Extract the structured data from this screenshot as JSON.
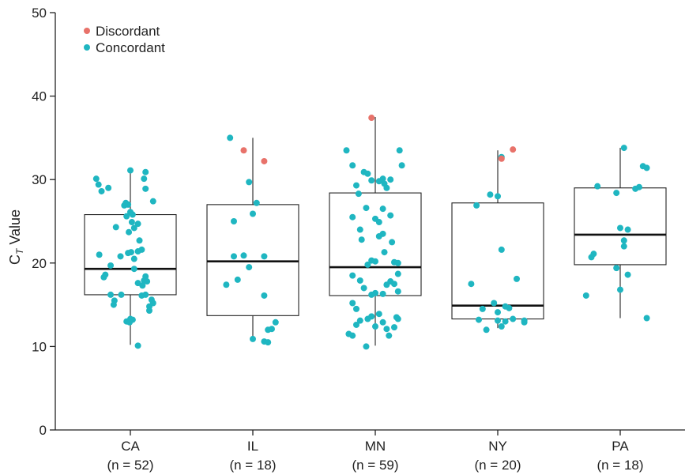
{
  "chart_data": {
    "type": "box-strip",
    "ylabel": "C",
    "ylabel_sub": "T",
    "ylabel_suffix": " Value",
    "ylim": [
      0,
      50
    ],
    "yticks": [
      0,
      10,
      20,
      30,
      40,
      50
    ],
    "grid": false,
    "legend_position": "top-left",
    "legend": [
      {
        "name": "Discordant",
        "color": "#e8726a"
      },
      {
        "name": "Concordant",
        "color": "#1fb6c1"
      }
    ],
    "categories": [
      {
        "name": "CA",
        "n_label": "(n = 52)",
        "box": {
          "q1": 16.2,
          "median": 19.3,
          "q3": 25.8,
          "whisker_low": 10.2,
          "whisker_high": 31.0
        },
        "points": [
          [
            -0.45,
            30.1
          ],
          [
            -0.42,
            29.4
          ],
          [
            -0.38,
            28.6
          ],
          [
            -0.29,
            29.0
          ],
          [
            -0.41,
            21.0
          ],
          [
            -0.35,
            18.3
          ],
          [
            -0.33,
            18.6
          ],
          [
            -0.26,
            19.7
          ],
          [
            -0.21,
            15.5
          ],
          [
            -0.22,
            15.0
          ],
          [
            -0.26,
            16.2
          ],
          [
            -0.12,
            16.2
          ],
          [
            -0.19,
            24.3
          ],
          [
            -0.08,
            26.9
          ],
          [
            -0.06,
            27.2
          ],
          [
            -0.03,
            27.0
          ],
          [
            0.0,
            26.1
          ],
          [
            0.03,
            25.8
          ],
          [
            -0.05,
            25.6
          ],
          [
            0.02,
            24.9
          ],
          [
            0.05,
            24.2
          ],
          [
            0.1,
            24.7
          ],
          [
            -0.02,
            23.7
          ],
          [
            0.0,
            31.1
          ],
          [
            -0.13,
            20.8
          ],
          [
            -0.03,
            21.2
          ],
          [
            0.01,
            21.3
          ],
          [
            0.1,
            21.4
          ],
          [
            0.15,
            21.6
          ],
          [
            0.12,
            22.7
          ],
          [
            0.05,
            20.5
          ],
          [
            0.03,
            13.2
          ],
          [
            -0.05,
            13.0
          ],
          [
            0.0,
            13.3
          ],
          [
            -0.01,
            12.9
          ],
          [
            0.05,
            19.3
          ],
          [
            0.1,
            17.6
          ],
          [
            0.16,
            17.3
          ],
          [
            0.18,
            17.9
          ],
          [
            0.2,
            18.4
          ],
          [
            0.22,
            17.8
          ],
          [
            0.2,
            16.2
          ],
          [
            0.15,
            16.1
          ],
          [
            0.28,
            15.6
          ],
          [
            0.25,
            14.8
          ],
          [
            0.25,
            14.3
          ],
          [
            0.3,
            15.2
          ],
          [
            0.3,
            27.4
          ],
          [
            0.2,
            30.9
          ],
          [
            0.18,
            30.1
          ],
          [
            0.2,
            28.9
          ],
          [
            0.1,
            10.1
          ]
        ],
        "discordant": []
      },
      {
        "name": "IL",
        "n_label": "(n = 18)",
        "box": {
          "q1": 13.7,
          "median": 20.2,
          "q3": 27.0,
          "whisker_low": 10.6,
          "whisker_high": 35.0
        },
        "points": [
          [
            -0.3,
            35.0
          ],
          [
            -0.25,
            25.0
          ],
          [
            -0.05,
            29.7
          ],
          [
            0.05,
            27.2
          ],
          [
            0.0,
            25.9
          ],
          [
            -0.35,
            17.4
          ],
          [
            -0.2,
            18.0
          ],
          [
            -0.05,
            19.5
          ],
          [
            -0.25,
            20.8
          ],
          [
            0.15,
            20.8
          ],
          [
            0.15,
            16.1
          ],
          [
            0.2,
            12.0
          ],
          [
            0.25,
            12.1
          ],
          [
            0.3,
            12.9
          ],
          [
            0.0,
            10.9
          ],
          [
            0.15,
            10.6
          ],
          [
            -0.12,
            20.9
          ],
          [
            0.2,
            10.5
          ]
        ],
        "discordant": [
          [
            -0.12,
            33.5
          ],
          [
            0.15,
            32.2
          ]
        ]
      },
      {
        "name": "MN",
        "n_label": "(n = 59)",
        "box": {
          "q1": 16.1,
          "median": 19.5,
          "q3": 28.4,
          "whisker_low": 10.1,
          "whisker_high": 37.5
        },
        "points": [
          [
            -0.38,
            33.5
          ],
          [
            -0.3,
            31.7
          ],
          [
            -0.25,
            29.3
          ],
          [
            -0.22,
            28.3
          ],
          [
            -0.15,
            30.9
          ],
          [
            -0.1,
            30.7
          ],
          [
            -0.05,
            29.9
          ],
          [
            0.05,
            29.8
          ],
          [
            0.1,
            30.1
          ],
          [
            0.12,
            29.5
          ],
          [
            0.15,
            29.0
          ],
          [
            0.2,
            30.0
          ],
          [
            -0.12,
            26.6
          ],
          [
            -0.3,
            25.5
          ],
          [
            -0.2,
            24.0
          ],
          [
            -0.18,
            22.8
          ],
          [
            0.0,
            25.3
          ],
          [
            0.05,
            24.9
          ],
          [
            0.1,
            26.5
          ],
          [
            0.2,
            25.7
          ],
          [
            0.22,
            22.5
          ],
          [
            0.1,
            23.5
          ],
          [
            0.05,
            23.2
          ],
          [
            -0.05,
            20.3
          ],
          [
            -0.1,
            19.8
          ],
          [
            0.0,
            20.2
          ],
          [
            0.12,
            21.3
          ],
          [
            0.25,
            20.1
          ],
          [
            0.3,
            18.7
          ],
          [
            -0.3,
            18.5
          ],
          [
            -0.2,
            17.9
          ],
          [
            -0.15,
            17.0
          ],
          [
            -0.05,
            16.2
          ],
          [
            0.0,
            16.4
          ],
          [
            0.1,
            16.3
          ],
          [
            0.15,
            17.4
          ],
          [
            0.2,
            17.8
          ],
          [
            0.25,
            17.5
          ],
          [
            0.3,
            16.6
          ],
          [
            -0.3,
            15.2
          ],
          [
            -0.25,
            14.5
          ],
          [
            -0.2,
            13.1
          ],
          [
            -0.1,
            13.3
          ],
          [
            -0.05,
            13.6
          ],
          [
            0.05,
            13.9
          ],
          [
            0.1,
            12.9
          ],
          [
            0.15,
            12.1
          ],
          [
            0.25,
            12.3
          ],
          [
            0.28,
            13.5
          ],
          [
            0.3,
            13.3
          ],
          [
            -0.35,
            11.5
          ],
          [
            -0.3,
            11.3
          ],
          [
            -0.25,
            12.6
          ],
          [
            0.0,
            12.4
          ],
          [
            -0.12,
            10.0
          ],
          [
            0.18,
            11.3
          ],
          [
            0.3,
            20.0
          ],
          [
            0.32,
            33.5
          ],
          [
            0.35,
            31.7
          ]
        ],
        "discordant": [
          [
            -0.05,
            37.4
          ]
        ]
      },
      {
        "name": "NY",
        "n_label": "(n = 20)",
        "box": {
          "q1": 13.3,
          "median": 14.9,
          "q3": 27.2,
          "whisker_low": 12.2,
          "whisker_high": 33.5
        },
        "points": [
          [
            -0.28,
            26.9
          ],
          [
            -0.2,
            14.5
          ],
          [
            -0.25,
            13.2
          ],
          [
            -0.35,
            17.5
          ],
          [
            -0.05,
            15.2
          ],
          [
            0.0,
            13.1
          ],
          [
            0.05,
            12.4
          ],
          [
            -0.15,
            12.0
          ],
          [
            0.1,
            14.8
          ],
          [
            0.15,
            14.6
          ],
          [
            0.2,
            13.3
          ],
          [
            0.35,
            13.1
          ],
          [
            0.25,
            18.1
          ],
          [
            0.05,
            21.6
          ],
          [
            -0.1,
            28.2
          ],
          [
            0.0,
            28.0
          ],
          [
            0.05,
            32.7
          ],
          [
            0.0,
            14.1
          ],
          [
            0.35,
            12.9
          ],
          [
            0.1,
            13.0
          ]
        ],
        "discordant": [
          [
            0.05,
            32.5
          ],
          [
            0.2,
            33.6
          ]
        ]
      },
      {
        "name": "PA",
        "n_label": "(n = 18)",
        "box": {
          "q1": 19.8,
          "median": 23.4,
          "q3": 29.0,
          "whisker_low": 13.4,
          "whisker_high": 33.8
        },
        "points": [
          [
            -0.3,
            29.2
          ],
          [
            -0.05,
            28.4
          ],
          [
            0.0,
            24.2
          ],
          [
            0.1,
            24.0
          ],
          [
            0.3,
            31.6
          ],
          [
            0.35,
            31.4
          ],
          [
            0.25,
            29.1
          ],
          [
            0.2,
            28.9
          ],
          [
            0.05,
            22.7
          ],
          [
            0.05,
            22.0
          ],
          [
            -0.05,
            19.4
          ],
          [
            -0.35,
            21.1
          ],
          [
            -0.38,
            20.7
          ],
          [
            0.1,
            18.6
          ],
          [
            0.0,
            16.8
          ],
          [
            -0.45,
            16.1
          ],
          [
            0.05,
            33.8
          ],
          [
            0.35,
            13.4
          ]
        ],
        "discordant": []
      }
    ]
  }
}
